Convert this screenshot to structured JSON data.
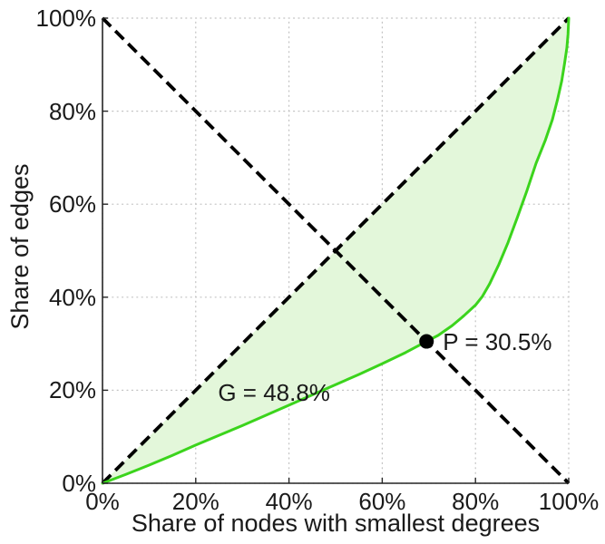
{
  "figure": {
    "background": "#ffffff",
    "colors": {
      "curve": "#3bd41c",
      "fill": "#e3f7da",
      "dashed": "#000000",
      "grid": "#c2c2c2",
      "axis": "#262626",
      "text": "#1a1a1a",
      "point": "#000000"
    }
  },
  "chart_data": {
    "type": "line",
    "title": "",
    "xlabel": "Share of nodes with smallest degrees",
    "ylabel": "Share of edges",
    "xlim": [
      0,
      100
    ],
    "ylim": [
      0,
      100
    ],
    "grid": "dotted",
    "legend": "none",
    "ticks": {
      "values": [
        0,
        20,
        40,
        60,
        80,
        100
      ],
      "labels": [
        "0%",
        "20%",
        "40%",
        "60%",
        "80%",
        "100%"
      ]
    },
    "series": [
      {
        "name": "lorenz-curve",
        "type": "line",
        "color": "#3bd41c",
        "points": [
          [
            0,
            0
          ],
          [
            5,
            1.9
          ],
          [
            10,
            3.9
          ],
          [
            15,
            6.0
          ],
          [
            20,
            8.2
          ],
          [
            25,
            10.3
          ],
          [
            30,
            12.4
          ],
          [
            35,
            14.6
          ],
          [
            40,
            16.8
          ],
          [
            45,
            19.0
          ],
          [
            50,
            21.2
          ],
          [
            55,
            23.4
          ],
          [
            60,
            25.7
          ],
          [
            65,
            28.1
          ],
          [
            69.5,
            30.5
          ],
          [
            72,
            31.8
          ],
          [
            75,
            33.9
          ],
          [
            77.5,
            36.0
          ],
          [
            80,
            38.3
          ],
          [
            81.5,
            40.2
          ],
          [
            83,
            42.8
          ],
          [
            85,
            47.0
          ],
          [
            87,
            51.8
          ],
          [
            89,
            57.2
          ],
          [
            91,
            62.8
          ],
          [
            93,
            68.8
          ],
          [
            95,
            73.8
          ],
          [
            96.5,
            78.2
          ],
          [
            97.6,
            82.5
          ],
          [
            98.5,
            86.5
          ],
          [
            99.1,
            90.2
          ],
          [
            99.6,
            93.6
          ],
          [
            99.85,
            96.5
          ],
          [
            100,
            100
          ]
        ]
      },
      {
        "name": "equality-diagonal",
        "type": "line",
        "style": "dashed",
        "color": "#000000",
        "points": [
          [
            0,
            0
          ],
          [
            100,
            100
          ]
        ]
      },
      {
        "name": "anti-diagonal",
        "type": "line",
        "style": "dashed",
        "color": "#000000",
        "points": [
          [
            0,
            100
          ],
          [
            100,
            0
          ]
        ]
      }
    ],
    "fill_between": {
      "upper": "equality-diagonal",
      "lower": "lorenz-curve",
      "color": "#e3f7da"
    },
    "point": {
      "x": 69.5,
      "y": 30.5,
      "radius": 8,
      "color": "#000000"
    },
    "annotations": {
      "gini": {
        "text": "G = 48.8%",
        "x": 36.8,
        "y": 19.5,
        "anchor": "middle"
      },
      "point_label": {
        "text": "P = 30.5%",
        "x": 73.0,
        "y": 30.4,
        "anchor": "start"
      }
    }
  }
}
